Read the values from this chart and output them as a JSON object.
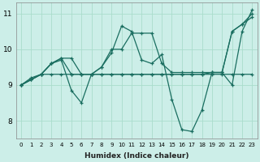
{
  "xlabel": "Humidex (Indice chaleur)",
  "bg_color": "#cceee8",
  "grid_color": "#aaddcc",
  "line_color": "#1a6e60",
  "xlim": [
    -0.5,
    23.5
  ],
  "ylim": [
    7.5,
    11.3
  ],
  "yticks": [
    8,
    9,
    10,
    11
  ],
  "xticks": [
    0,
    1,
    2,
    3,
    4,
    5,
    6,
    7,
    8,
    9,
    10,
    11,
    12,
    13,
    14,
    15,
    16,
    17,
    18,
    19,
    20,
    21,
    22,
    23
  ],
  "series": [
    [
      9.0,
      9.2,
      9.3,
      9.6,
      9.7,
      8.85,
      8.5,
      9.3,
      9.5,
      9.9,
      10.65,
      10.5,
      9.7,
      9.6,
      9.85,
      8.6,
      7.75,
      7.7,
      8.3,
      9.35,
      9.35,
      9.0,
      10.5,
      11.1
    ],
    [
      9.0,
      9.15,
      9.3,
      9.6,
      9.75,
      9.75,
      9.3,
      9.3,
      9.5,
      10.0,
      10.0,
      10.45,
      10.45,
      10.45,
      9.6,
      9.35,
      9.35,
      9.35,
      9.35,
      9.35,
      9.35,
      10.5,
      10.7,
      11.0
    ],
    [
      9.0,
      9.15,
      9.3,
      9.6,
      9.75,
      9.3,
      9.3,
      9.3,
      9.3,
      9.3,
      9.3,
      9.3,
      9.3,
      9.3,
      9.3,
      9.3,
      9.3,
      9.3,
      9.3,
      9.3,
      9.3,
      9.3,
      9.3,
      9.3
    ],
    [
      9.0,
      9.15,
      9.3,
      9.3,
      9.3,
      9.3,
      9.3,
      9.3,
      9.3,
      9.3,
      9.3,
      9.3,
      9.3,
      9.3,
      9.3,
      9.3,
      9.3,
      9.3,
      9.3,
      9.35,
      9.35,
      10.5,
      10.7,
      10.9
    ]
  ]
}
